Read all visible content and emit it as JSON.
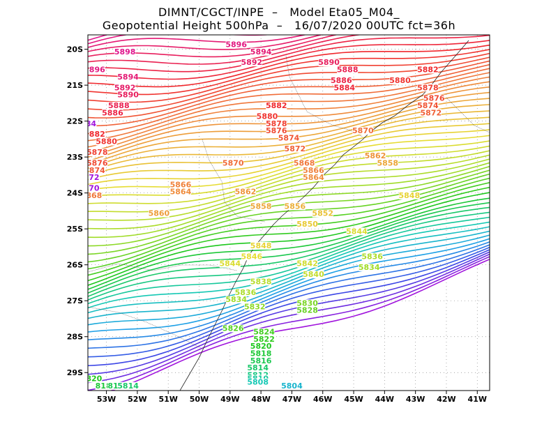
{
  "header": {
    "line1": "DIMNT/CGCT/INPE  –   Model Eta05_M04_",
    "line2": "Geopotential Height 500hPa  –   16/07/2020 00UTC fct=36h"
  },
  "map": {
    "lon_range": [
      -53.6,
      -40.6
    ],
    "lat_range": [
      -29.5,
      -19.6
    ],
    "lon_ticks": [
      "53W",
      "52W",
      "51W",
      "50W",
      "49W",
      "48W",
      "47W",
      "46W",
      "45W",
      "44W",
      "43W",
      "42W",
      "41W"
    ],
    "lat_ticks": [
      "20S",
      "21S",
      "22S",
      "23S",
      "24S",
      "25S",
      "26S",
      "27S",
      "28S",
      "29S"
    ],
    "field": "Geopotential Height 500hPa",
    "contour_interval": 2,
    "contour_range": [
      5784,
      5898
    ],
    "contour_labels": [
      {
        "text": "5896",
        "lon": -48.8,
        "lat": -19.9
      },
      {
        "text": "5898",
        "lon": -52.4,
        "lat": -20.1
      },
      {
        "text": "5894",
        "lon": -48.0,
        "lat": -20.1
      },
      {
        "text": "5892",
        "lon": -48.3,
        "lat": -20.4
      },
      {
        "text": "5890",
        "lon": -45.8,
        "lat": -20.4
      },
      {
        "text": "896",
        "lon": -53.3,
        "lat": -20.6
      },
      {
        "text": "5888",
        "lon": -45.2,
        "lat": -20.6
      },
      {
        "text": "5882",
        "lon": -42.6,
        "lat": -20.6
      },
      {
        "text": "5894",
        "lon": -52.3,
        "lat": -20.8
      },
      {
        "text": "5886",
        "lon": -45.4,
        "lat": -20.9
      },
      {
        "text": "5880",
        "lon": -43.5,
        "lat": -20.9
      },
      {
        "text": "5892",
        "lon": -52.4,
        "lat": -21.1
      },
      {
        "text": "5884",
        "lon": -45.3,
        "lat": -21.1
      },
      {
        "text": "5878",
        "lon": -42.6,
        "lat": -21.1
      },
      {
        "text": "5890",
        "lon": -52.3,
        "lat": -21.3
      },
      {
        "text": "5876",
        "lon": -42.4,
        "lat": -21.4
      },
      {
        "text": "5888",
        "lon": -52.6,
        "lat": -21.6
      },
      {
        "text": "5882",
        "lon": -47.5,
        "lat": -21.6
      },
      {
        "text": "5874",
        "lon": -42.6,
        "lat": -21.6
      },
      {
        "text": "5886",
        "lon": -52.8,
        "lat": -21.8
      },
      {
        "text": "5872",
        "lon": -42.5,
        "lat": -21.8
      },
      {
        "text": "5880",
        "lon": -47.8,
        "lat": -21.9
      },
      {
        "text": "5878",
        "lon": -47.5,
        "lat": -22.1
      },
      {
        "text": "84",
        "lon": -53.5,
        "lat": -22.1
      },
      {
        "text": "5876",
        "lon": -47.5,
        "lat": -22.3
      },
      {
        "text": "5870",
        "lon": -44.7,
        "lat": -22.3
      },
      {
        "text": "882",
        "lon": -53.3,
        "lat": -22.4
      },
      {
        "text": "5874",
        "lon": -47.1,
        "lat": -22.5
      },
      {
        "text": "5880",
        "lon": -53.0,
        "lat": -22.6
      },
      {
        "text": "5872",
        "lon": -46.9,
        "lat": -22.8
      },
      {
        "text": "5878",
        "lon": -53.3,
        "lat": -22.9
      },
      {
        "text": "5862",
        "lon": -44.3,
        "lat": -23.0
      },
      {
        "text": "5876",
        "lon": -53.3,
        "lat": -23.2
      },
      {
        "text": "5870",
        "lon": -48.9,
        "lat": -23.2
      },
      {
        "text": "5868",
        "lon": -46.6,
        "lat": -23.2
      },
      {
        "text": "5858",
        "lon": -43.9,
        "lat": -23.2
      },
      {
        "text": "874",
        "lon": -53.3,
        "lat": -23.4
      },
      {
        "text": "5866",
        "lon": -46.3,
        "lat": -23.4
      },
      {
        "text": "72",
        "lon": -53.4,
        "lat": -23.6
      },
      {
        "text": "5864",
        "lon": -46.3,
        "lat": -23.6
      },
      {
        "text": "5866",
        "lon": -50.6,
        "lat": -23.8
      },
      {
        "text": "70",
        "lon": -53.4,
        "lat": -23.9
      },
      {
        "text": "5864",
        "lon": -50.6,
        "lat": -24.0
      },
      {
        "text": "5862",
        "lon": -48.5,
        "lat": -24.0
      },
      {
        "text": "868",
        "lon": -53.4,
        "lat": -24.1
      },
      {
        "text": "5848",
        "lon": -43.2,
        "lat": -24.1
      },
      {
        "text": "5858",
        "lon": -48.0,
        "lat": -24.4
      },
      {
        "text": "5856",
        "lon": -46.9,
        "lat": -24.4
      },
      {
        "text": "5860",
        "lon": -51.3,
        "lat": -24.6
      },
      {
        "text": "5852",
        "lon": -46.0,
        "lat": -24.6
      },
      {
        "text": "5850",
        "lon": -46.5,
        "lat": -24.9
      },
      {
        "text": "5844",
        "lon": -44.9,
        "lat": -25.1
      },
      {
        "text": "5848",
        "lon": -48.0,
        "lat": -25.5
      },
      {
        "text": "5846",
        "lon": -48.3,
        "lat": -25.8
      },
      {
        "text": "5836",
        "lon": -44.4,
        "lat": -25.8
      },
      {
        "text": "5844",
        "lon": -49.0,
        "lat": -26.0
      },
      {
        "text": "5842",
        "lon": -46.5,
        "lat": -26.0
      },
      {
        "text": "5834",
        "lon": -44.5,
        "lat": -26.1
      },
      {
        "text": "5840",
        "lon": -46.3,
        "lat": -26.3
      },
      {
        "text": "5838",
        "lon": -48.0,
        "lat": -26.5
      },
      {
        "text": "5836",
        "lon": -48.5,
        "lat": -26.8
      },
      {
        "text": "5834",
        "lon": -48.8,
        "lat": -27.0
      },
      {
        "text": "5830",
        "lon": -46.5,
        "lat": -27.1
      },
      {
        "text": "5832",
        "lon": -48.2,
        "lat": -27.2
      },
      {
        "text": "5828",
        "lon": -46.5,
        "lat": -27.3
      },
      {
        "text": "5826",
        "lon": -48.9,
        "lat": -27.8
      },
      {
        "text": "5824",
        "lon": -47.9,
        "lat": -27.9
      },
      {
        "text": "5822",
        "lon": -47.9,
        "lat": -28.1
      },
      {
        "text": "5820",
        "lon": -48.0,
        "lat": -28.3
      },
      {
        "text": "5818",
        "lon": -48.0,
        "lat": -28.5
      },
      {
        "text": "5816",
        "lon": -48.0,
        "lat": -28.7
      },
      {
        "text": "5814",
        "lon": -48.1,
        "lat": -28.9
      },
      {
        "text": "5812",
        "lon": -48.1,
        "lat": -29.1
      },
      {
        "text": "5810",
        "lon": -48.1,
        "lat": -29.2
      },
      {
        "text": "820",
        "lon": -53.4,
        "lat": -29.2
      },
      {
        "text": "5808",
        "lon": -48.1,
        "lat": -29.3
      },
      {
        "text": "5804",
        "lon": -47.0,
        "lat": -29.4
      },
      {
        "text": "818",
        "lon": -53.1,
        "lat": -29.4
      },
      {
        "text": "816",
        "lon": -52.7,
        "lat": -29.4
      },
      {
        "text": "5814",
        "lon": -52.3,
        "lat": -29.4
      }
    ]
  },
  "colors": {
    "magenta": "#e0148c",
    "red": "#f0282d",
    "orange": "#f0823c",
    "yellow": "#e6dc32",
    "lime": "#a0dc28",
    "green": "#1ec81e",
    "teal": "#14c8b4",
    "cyan": "#1ea0e6",
    "blue": "#3c46e6",
    "purple": "#a014dc"
  }
}
